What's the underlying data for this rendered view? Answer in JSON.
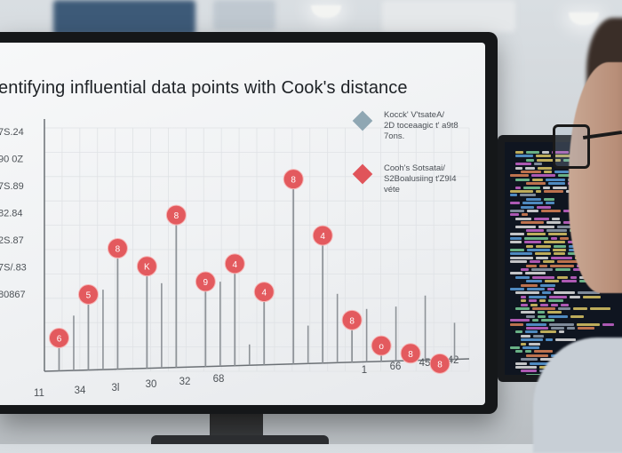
{
  "chart_data": {
    "type": "scatter",
    "title": "entifying influential data points with Cook's distance",
    "y_tick_labels": [
      "7S.24",
      "90 0Z",
      "7S.89",
      "82.84",
      "2S.87",
      "7S/.83",
      "80867"
    ],
    "x_tick_labels": [
      "11",
      "34",
      "3l",
      "30",
      "32",
      "68",
      "1",
      "66",
      "45",
      "42"
    ],
    "points": [
      {
        "x": 1,
        "y": 0.13,
        "label": "6"
      },
      {
        "x": 2,
        "y": 0.3,
        "label": "5"
      },
      {
        "x": 3,
        "y": 0.48,
        "label": "8"
      },
      {
        "x": 4,
        "y": 0.41,
        "label": "K"
      },
      {
        "x": 5,
        "y": 0.61,
        "label": "8"
      },
      {
        "x": 6,
        "y": 0.35,
        "label": "9"
      },
      {
        "x": 7,
        "y": 0.42,
        "label": "4"
      },
      {
        "x": 8,
        "y": 0.31,
        "label": "4"
      },
      {
        "x": 9,
        "y": 0.75,
        "label": "8"
      },
      {
        "x": 10,
        "y": 0.53,
        "label": "4"
      },
      {
        "x": 11,
        "y": 0.2,
        "label": "8"
      },
      {
        "x": 12,
        "y": 0.1,
        "label": "o"
      },
      {
        "x": 13,
        "y": 0.07,
        "label": "8"
      },
      {
        "x": 14,
        "y": 0.03,
        "label": "8"
      }
    ],
    "stems_only": [
      1.5,
      2.5,
      4.5,
      6.5,
      7.5,
      9.5,
      10.5,
      11.5,
      12.5,
      13.5,
      14.5
    ],
    "legend": [
      {
        "marker": "diamond",
        "color": "#8fa7b3",
        "lines": [
          "Kocck' V'tsateA/",
          "2D toceaagic  t' a9t8",
          "7ons."
        ]
      },
      {
        "marker": "diamond",
        "color": "#e0545a",
        "lines": [
          "Cooh's Sotsatai/",
          "S2Boalusiing  t'Z9I4",
          "véte"
        ]
      }
    ],
    "legend_placement": "top-right",
    "grid": true,
    "colors": {
      "point": "#e35a5e",
      "stem": "#8e9398",
      "axis": "#6b7075",
      "grid": "#dfe2e5"
    }
  }
}
